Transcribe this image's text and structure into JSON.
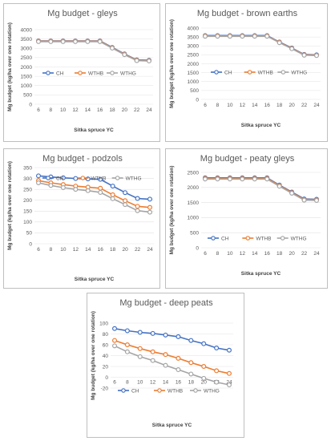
{
  "chart_data": [
    {
      "type": "line",
      "title": "Mg budget - gleys",
      "xlabel": "Sitka spruce YC",
      "ylabel": "Mg budget (kg/ha over one rotation)",
      "x": [
        6,
        8,
        10,
        12,
        14,
        16,
        18,
        20,
        22,
        24
      ],
      "ylim": [
        0,
        4000
      ],
      "yticks": [
        0,
        500,
        1000,
        1500,
        2000,
        2500,
        3000,
        3500,
        4000
      ],
      "legend": "inside-left",
      "series": [
        {
          "name": "CH",
          "values": [
            3400,
            3400,
            3400,
            3400,
            3400,
            3400,
            3050,
            2700,
            2380,
            2360
          ]
        },
        {
          "name": "WTHB",
          "values": [
            3380,
            3380,
            3380,
            3380,
            3380,
            3380,
            3030,
            2680,
            2360,
            2340
          ]
        },
        {
          "name": "WTHG",
          "values": [
            3360,
            3360,
            3360,
            3360,
            3360,
            3360,
            3010,
            2660,
            2340,
            2320
          ]
        }
      ]
    },
    {
      "type": "line",
      "title": "Mg budget - brown earths",
      "xlabel": "Sitka spruce YC",
      "ylabel": "Mg budget (kg/ha over one rotation)",
      "x": [
        6,
        8,
        10,
        12,
        14,
        16,
        18,
        20,
        22,
        24
      ],
      "ylim": [
        0,
        4000
      ],
      "yticks": [
        0,
        500,
        1000,
        1500,
        2000,
        2500,
        3000,
        3500,
        4000
      ],
      "legend": "inside-right",
      "series": [
        {
          "name": "CH",
          "values": [
            3580,
            3580,
            3580,
            3580,
            3580,
            3580,
            3220,
            2880,
            2520,
            2500
          ]
        },
        {
          "name": "WTHB",
          "values": [
            3560,
            3560,
            3560,
            3560,
            3560,
            3560,
            3200,
            2860,
            2500,
            2480
          ]
        },
        {
          "name": "WTHG",
          "values": [
            3540,
            3540,
            3540,
            3540,
            3540,
            3540,
            3180,
            2840,
            2480,
            2460
          ]
        }
      ]
    },
    {
      "type": "line",
      "title": "Mg budget - podzols",
      "xlabel": "Sitka spruce YC",
      "ylabel": "Mg budget (kg/ha over one rotation)",
      "x": [
        6,
        8,
        10,
        12,
        14,
        16,
        18,
        20,
        22,
        24
      ],
      "ylim": [
        0,
        350
      ],
      "yticks": [
        0,
        50,
        100,
        150,
        200,
        250,
        300,
        350
      ],
      "legend": "top",
      "series": [
        {
          "name": "CH",
          "values": [
            312,
            307,
            303,
            300,
            298,
            296,
            265,
            235,
            208,
            205
          ]
        },
        {
          "name": "WTHB",
          "values": [
            290,
            280,
            272,
            265,
            260,
            255,
            225,
            198,
            172,
            167
          ]
        },
        {
          "name": "WTHG",
          "values": [
            280,
            268,
            258,
            250,
            244,
            236,
            207,
            180,
            152,
            145
          ]
        }
      ]
    },
    {
      "type": "line",
      "title": "Mg budget - peaty gleys",
      "xlabel": "Sitka spruce YC",
      "ylabel": "Mg budget (kg/ha over one rotation)",
      "x": [
        6,
        8,
        10,
        12,
        14,
        16,
        18,
        20,
        22,
        24
      ],
      "ylim": [
        0,
        2500
      ],
      "yticks": [
        0,
        500,
        1000,
        1500,
        2000,
        2500
      ],
      "legend": "bottom",
      "series": [
        {
          "name": "CH",
          "values": [
            2320,
            2320,
            2320,
            2320,
            2320,
            2320,
            2080,
            1850,
            1620,
            1610
          ]
        },
        {
          "name": "WTHB",
          "values": [
            2300,
            2300,
            2300,
            2300,
            2300,
            2300,
            2060,
            1830,
            1600,
            1590
          ]
        },
        {
          "name": "WTHG",
          "values": [
            2280,
            2280,
            2280,
            2280,
            2280,
            2280,
            2040,
            1810,
            1580,
            1570
          ]
        }
      ]
    },
    {
      "type": "line",
      "title": "Mg budget - deep peats",
      "xlabel": "Sitka spruce YC",
      "ylabel": "Mg budget (kg/ha over one rotation)",
      "x": [
        6,
        8,
        10,
        12,
        14,
        16,
        18,
        20,
        22,
        24
      ],
      "ylim": [
        -20,
        100
      ],
      "yticks": [
        -20,
        0,
        20,
        40,
        60,
        80,
        100
      ],
      "legend": "bottom",
      "series": [
        {
          "name": "CH",
          "values": [
            90,
            86,
            83,
            81,
            78,
            75,
            68,
            62,
            54,
            50
          ]
        },
        {
          "name": "WTHB",
          "values": [
            68,
            60,
            53,
            47,
            42,
            35,
            27,
            20,
            12,
            7
          ]
        },
        {
          "name": "WTHG",
          "values": [
            58,
            47,
            38,
            31,
            22,
            14,
            6,
            -2,
            -9,
            -14
          ]
        }
      ]
    }
  ],
  "colors": {
    "CH": "#4472c4",
    "WTHB": "#ed7d31",
    "WTHG": "#a5a5a5"
  }
}
